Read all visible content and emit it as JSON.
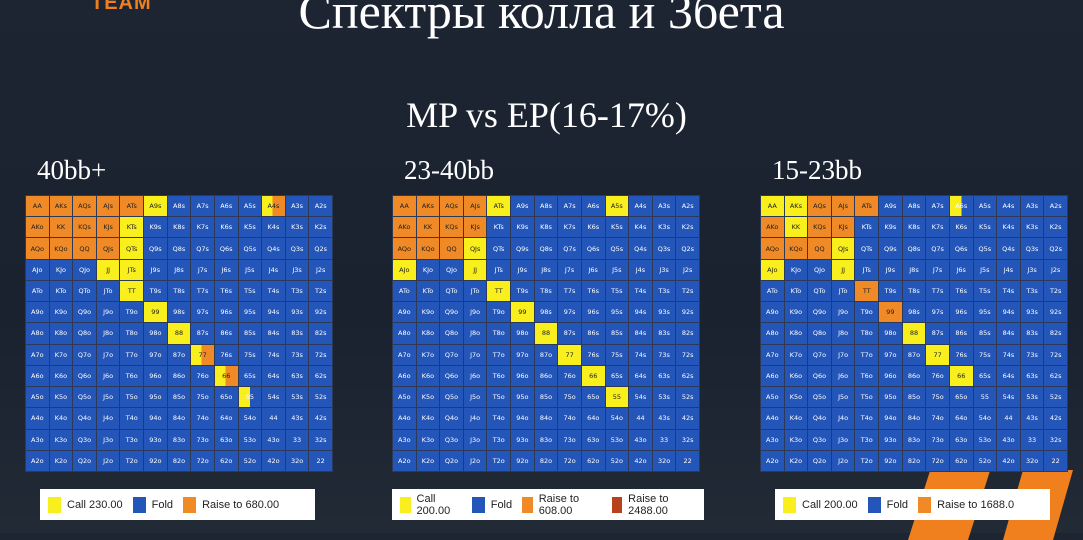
{
  "header": {
    "logo_part": "TEAM",
    "title": "Спектры колла и 3бета",
    "subtitle": "MP vs EP(16-17%)"
  },
  "colors": {
    "fold": "#2356b8",
    "call": "#f8ef1c",
    "raise": "#f08a26",
    "allin": "#b8401a"
  },
  "ranges": [
    {
      "label": "40bb+",
      "legend": [
        {
          "text": "Call 230.00",
          "color": "#f8ef1c"
        },
        {
          "text": "Fold",
          "color": "#2356b8"
        },
        {
          "text": "Raise to 680.00",
          "color": "#f08a26"
        }
      ],
      "cells": [
        "RRRRRRRCFFFRCFFFFFFFFFFFFFFFFFFFF",
        "x"
      ]
    }
  ],
  "range_list": [
    {
      "label": "40bb+",
      "legend": [
        {
          "text": "Call 230.00",
          "color": "#f8ef1c"
        },
        {
          "text": "Fold",
          "color": "#2356b8"
        },
        {
          "text": "Raise to 680.00",
          "color": "#f08a26"
        }
      ],
      "grid": [
        "RRRRRCFFFFMFF",
        "RRRRCFFFFFFFF",
        "RRRRCFFFFFFFF",
        "FFFCCFFFFFFFF",
        "FFFFCFFFFFFFF",
        "FFFFFCFFFFFFF",
        "FFFFFFCFFFFFF",
        "FFFFFFFMFFFFF",
        "FFFFFFFFMFFFF",
        "FFFFFFFFFHFFF",
        "FFFFFFFFFFFFF",
        "FFFFFFFFFFFFF",
        "FFFFFFFFFFFFF"
      ]
    },
    {
      "label": "23-40bb",
      "legend": [
        {
          "text": "Call 200.00",
          "color": "#f8ef1c"
        },
        {
          "text": "Fold",
          "color": "#2356b8"
        },
        {
          "text": "Raise to 608.00",
          "color": "#f08a26"
        },
        {
          "text": "Raise to 2488.00",
          "color": "#b8401a"
        }
      ],
      "grid": [
        "RRRRCFFFFCFFF",
        "RRRRFFFFFFFFF",
        "RRRCFFFFFFFFF",
        "CFFCFFFFFFFFF",
        "FFFFCFFFFFFFF",
        "FFFFFCFFFFFFF",
        "FFFFFFCFFFFFF",
        "FFFFFFFCFFFFF",
        "FFFFFFFFCFFFF",
        "FFFFFFFFFCFFF",
        "FFFFFFFFFFFFF",
        "FFFFFFFFFFFFF",
        "FFFFFFFFFFFFF"
      ]
    },
    {
      "label": "15-23bb",
      "legend": [
        {
          "text": "Call 200.00",
          "color": "#f8ef1c"
        },
        {
          "text": "Fold",
          "color": "#2356b8"
        },
        {
          "text": "Raise to 1688.0",
          "color": "#f08a26"
        }
      ],
      "grid": [
        "CCRRRFFFHFFFF",
        "RCRRFFFFFFFFF",
        "RRRCFFFFFFFFF",
        "CFFCFFFFFFFFF",
        "FFFFRFFFFFFFF",
        "FFFFFRFFFFFFF",
        "FFFFFFCFFFFFF",
        "FFFFFFFCFFFFF",
        "FFFFFFFFCFFFF",
        "FFFFFFFFFFFFF",
        "FFFFFFFFFFFFF",
        "FFFFFFFFFFFFF",
        "FFFFFFFFFFFFF"
      ]
    }
  ]
}
